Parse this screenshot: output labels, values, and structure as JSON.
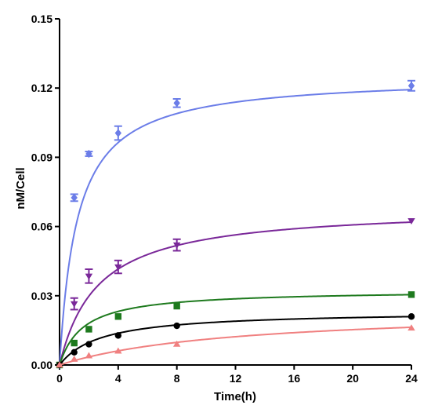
{
  "chart_data": {
    "type": "line",
    "title": "",
    "xlabel": "Time(h)",
    "ylabel": "nM/Cell",
    "xlim": [
      0,
      24
    ],
    "ylim": [
      0,
      0.15
    ],
    "xticks": [
      0,
      4,
      8,
      12,
      16,
      20,
      24
    ],
    "xtick_labels": [
      "0",
      "4",
      "8",
      "12",
      "16",
      "20",
      "24"
    ],
    "yticks": [
      0,
      0.03,
      0.06,
      0.09,
      0.12,
      0.15
    ],
    "ytick_labels": [
      "0.00",
      "0.03",
      "0.06",
      "0.09",
      "0.12",
      "0.15"
    ],
    "grid": false,
    "series": [
      {
        "color": "#6b7de8",
        "marker": "diamond",
        "x": [
          0,
          1,
          2,
          4,
          8,
          24
        ],
        "y": [
          0,
          0.0725,
          0.0915,
          0.1005,
          0.1135,
          0.121
        ],
        "err": [
          0,
          0.0015,
          0.001,
          0.003,
          0.0018,
          0.0022
        ],
        "fit": {
          "ymax": 0.1253,
          "k": 1.2
        }
      },
      {
        "color": "#7a2899",
        "marker": "triangle-down",
        "x": [
          0,
          1,
          2,
          4,
          8,
          24
        ],
        "y": [
          0,
          0.0265,
          0.0385,
          0.0425,
          0.052,
          0.0625
        ],
        "err": [
          0,
          0.0025,
          0.003,
          0.0028,
          0.0025,
          0
        ],
        "fit": {
          "ymax": 0.0686,
          "k": 2.6
        }
      },
      {
        "color": "#1e7a1e",
        "marker": "square",
        "x": [
          0,
          1,
          2,
          4,
          8,
          24
        ],
        "y": [
          0,
          0.0095,
          0.0155,
          0.021,
          0.0255,
          0.0305
        ],
        "err": [
          0,
          0,
          0,
          0,
          0,
          0
        ],
        "fit": {
          "ymax": 0.0325,
          "k": 1.6
        }
      },
      {
        "color": "#000000",
        "marker": "circle",
        "x": [
          0,
          1,
          2,
          4,
          8,
          24
        ],
        "y": [
          0,
          0.0055,
          0.009,
          0.0128,
          0.017,
          0.021
        ],
        "err": [
          0,
          0,
          0,
          0,
          0,
          0
        ],
        "fit": {
          "ymax": 0.0234,
          "k": 2.8
        }
      },
      {
        "color": "#f08080",
        "marker": "triangle-up",
        "x": [
          0,
          1,
          2,
          4,
          8,
          24
        ],
        "y": [
          0,
          0.0025,
          0.004,
          0.006,
          0.009,
          0.016
        ],
        "err": [
          0,
          0,
          0,
          0,
          0,
          0
        ],
        "fit": {
          "ymax": 0.0245,
          "k": 12.0
        }
      }
    ]
  }
}
